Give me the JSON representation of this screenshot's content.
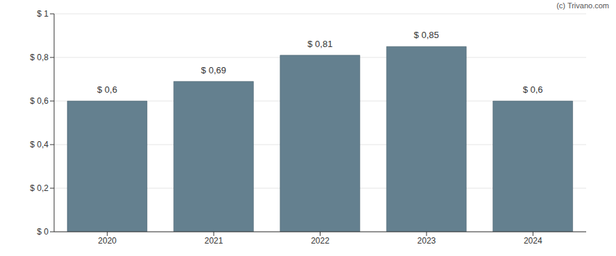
{
  "chart_data": {
    "type": "bar",
    "annotation": "(c) Trivano.com",
    "categories": [
      "2020",
      "2021",
      "2022",
      "2023",
      "2024"
    ],
    "values": [
      0.6,
      0.69,
      0.81,
      0.85,
      0.6
    ],
    "value_labels": [
      "$ 0,6",
      "$ 0,69",
      "$ 0,81",
      "$ 0,85",
      "$ 0,6"
    ],
    "data_labels": true,
    "color": "#64808f",
    "ylim": [
      0,
      1
    ],
    "yticks": [
      {
        "value": 0,
        "label": "$ 0"
      },
      {
        "value": 0.2,
        "label": "$ 0,2"
      },
      {
        "value": 0.4,
        "label": "$ 0,4"
      },
      {
        "value": 0.6,
        "label": "$ 0,6"
      },
      {
        "value": 0.8,
        "label": "$ 0,8"
      },
      {
        "value": 1,
        "label": "$ 1"
      }
    ],
    "grid": true
  }
}
